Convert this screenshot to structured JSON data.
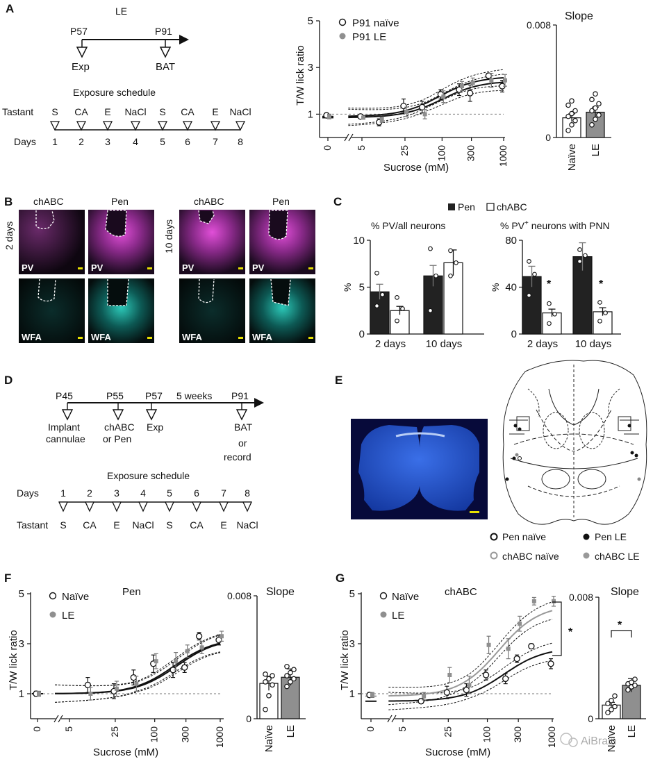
{
  "panels": {
    "A": {
      "letter": "A",
      "group": "LE",
      "timeline": {
        "start": "P57",
        "end": "P91",
        "start_event": "Exp",
        "end_event": "BAT"
      },
      "schedule_title": "Exposure schedule",
      "row_tastant": "Tastant",
      "row_days": "Days",
      "tastants": [
        "S",
        "CA",
        "E",
        "NaCl",
        "S",
        "CA",
        "E",
        "NaCl"
      ],
      "days": [
        "1",
        "2",
        "3",
        "4",
        "5",
        "6",
        "7",
        "8"
      ]
    },
    "B": {
      "letter": "B",
      "col_labels": [
        "chABC",
        "Pen",
        "chABC",
        "Pen"
      ],
      "row_labels": [
        "2 days",
        "10 days"
      ],
      "stain_labels": [
        "PV",
        "PV",
        "WFA",
        "WFA"
      ]
    },
    "C": {
      "letter": "C",
      "legend": [
        "Pen",
        "chABC"
      ],
      "titles": [
        "% PV/all neurons",
        "% PV",
        "+",
        " neurons with PNN"
      ],
      "star": "*"
    },
    "D": {
      "letter": "D",
      "timeline": [
        "P45",
        "P55",
        "P57",
        "5 weeks",
        "P91"
      ],
      "events": [
        "Implant",
        "cannulae",
        "chABC",
        "or Pen",
        "Exp",
        "BAT",
        "or",
        "record"
      ],
      "schedule_title": "Exposure schedule",
      "row_days": "Days",
      "row_tastant": "Tastant",
      "days": [
        "1",
        "2",
        "3",
        "4",
        "5",
        "6",
        "7",
        "8"
      ],
      "tastants": [
        "S",
        "CA",
        "E",
        "NaCl",
        "S",
        "CA",
        "E",
        "NaCl"
      ]
    },
    "E": {
      "letter": "E",
      "legend": [
        "Pen naïve",
        "Pen LE",
        "chABC naïve",
        "chABC LE"
      ]
    },
    "F": {
      "letter": "F",
      "title": "Pen"
    },
    "G": {
      "letter": "G",
      "title": "chABC",
      "star": "*"
    }
  },
  "watermark": "AiBrain",
  "chart_data": [
    {
      "id": "A-curve",
      "type": "scatter",
      "xlabel": "Sucrose (mM)",
      "ylabel": "T/W lick ratio",
      "xticks": [
        "0",
        "5",
        "25",
        "100",
        "300",
        "1000"
      ],
      "yticks": [
        "1",
        "3",
        "5"
      ],
      "ylim": [
        0,
        5
      ],
      "xscale": "log",
      "series": [
        {
          "name": "P91 naïve",
          "color": "#ffffff",
          "x": [
            0,
            5,
            10,
            25,
            50,
            100,
            200,
            300,
            600,
            1000
          ],
          "y": [
            0.95,
            0.9,
            0.65,
            1.35,
            1.3,
            1.85,
            2.05,
            1.9,
            2.65,
            2.2
          ],
          "err": [
            0.1,
            0.06,
            0.15,
            0.3,
            0.25,
            0.2,
            0.25,
            0.35,
            0.1,
            0.25
          ]
        },
        {
          "name": "P91 LE",
          "color": "#8f8f8f",
          "x": [
            0,
            5,
            10,
            25,
            50,
            100,
            200,
            300,
            600,
            1000
          ],
          "y": [
            0.9,
            0.85,
            0.75,
            1.1,
            1.0,
            1.75,
            2.2,
            2.35,
            2.45,
            2.45
          ],
          "err": [
            0.1,
            0.06,
            0.1,
            0.2,
            0.2,
            0.25,
            0.2,
            0.2,
            0.3,
            0.25
          ]
        }
      ]
    },
    {
      "id": "A-slope",
      "type": "bar",
      "title": "Slope",
      "categories": [
        "Naïve",
        "LE"
      ],
      "values": [
        0.0014,
        0.0018
      ],
      "ylim": [
        0,
        0.008
      ],
      "yticks": [
        "0",
        "0.008"
      ],
      "points": [
        [
          0.0005,
          0.0009,
          0.0012,
          0.0015,
          0.0017,
          0.0019,
          0.0023,
          0.0026
        ],
        [
          0.0009,
          0.0013,
          0.0016,
          0.0019,
          0.0021,
          0.0024,
          0.0027,
          0.0031
        ]
      ]
    },
    {
      "id": "C-left",
      "type": "bar",
      "title": "% PV/all neurons",
      "ylabel": "%",
      "categories": [
        "2 days",
        "10 days"
      ],
      "series": [
        {
          "name": "Pen",
          "values": [
            4.5,
            6.2
          ]
        },
        {
          "name": "chABC",
          "values": [
            2.5,
            7.6
          ]
        }
      ],
      "ylim": [
        0,
        10
      ],
      "yticks": [
        "0",
        "5",
        "10"
      ],
      "points": {
        "Pen": [
          [
            3.0,
            4.2,
            6.5
          ],
          [
            2.5,
            6.2,
            9.1
          ]
        ],
        "chABC": [
          [
            1.4,
            2.7,
            3.9
          ],
          [
            6.2,
            7.6,
            8.9
          ]
        ]
      }
    },
    {
      "id": "C-right",
      "type": "bar",
      "ylabel": "%",
      "categories": [
        "2 days",
        "10 days"
      ],
      "series": [
        {
          "name": "Pen",
          "values": [
            49,
            66
          ]
        },
        {
          "name": "chABC",
          "values": [
            18,
            19
          ]
        }
      ],
      "ylim": [
        0,
        80
      ],
      "yticks": [
        "0",
        "40",
        "80"
      ],
      "points": {
        "Pen": [
          [
            33,
            51,
            62
          ],
          [
            62,
            67,
            72
          ]
        ],
        "chABC": [
          [
            9,
            17,
            26
          ],
          [
            11,
            18,
            27
          ]
        ]
      }
    },
    {
      "id": "F-curve",
      "type": "scatter",
      "xlabel": "Sucrose (mM)",
      "ylabel": "T/W lick ratio",
      "xticks": [
        "0",
        "5",
        "25",
        "100",
        "300",
        "1000"
      ],
      "yticks": [
        "1",
        "3",
        "5"
      ],
      "ylim": [
        0,
        5
      ],
      "xscale": "log",
      "series": [
        {
          "name": "Naïve",
          "color": "#ffffff",
          "x": [
            0,
            10,
            25,
            50,
            100,
            200,
            300,
            500,
            1000
          ],
          "y": [
            1.0,
            1.35,
            1.1,
            1.65,
            2.2,
            1.95,
            2.05,
            3.3,
            3.15
          ],
          "err": [
            0.1,
            0.3,
            0.3,
            0.3,
            0.35,
            0.3,
            0.2,
            0.15,
            0.2
          ]
        },
        {
          "name": "LE",
          "color": "#8f8f8f",
          "x": [
            0,
            10,
            25,
            50,
            100,
            200,
            300,
            500,
            1000
          ],
          "y": [
            1.0,
            1.0,
            1.2,
            1.4,
            2.3,
            2.3,
            2.7,
            2.85,
            3.3
          ],
          "err": [
            0.1,
            0.25,
            0.3,
            0.3,
            0.3,
            0.35,
            0.25,
            0.25,
            0.2
          ]
        }
      ]
    },
    {
      "id": "F-slope",
      "type": "bar",
      "title": "Slope",
      "categories": [
        "Naïve",
        "LE"
      ],
      "values": [
        0.0023,
        0.0027
      ],
      "ylim": [
        0,
        0.008
      ],
      "yticks": [
        "0",
        "0.008"
      ],
      "points": [
        [
          0.0006,
          0.0015,
          0.0022,
          0.0024,
          0.0026,
          0.0028,
          0.0029
        ],
        [
          0.0021,
          0.0024,
          0.0026,
          0.0028,
          0.003,
          0.0032,
          0.0034
        ]
      ]
    },
    {
      "id": "G-curve",
      "type": "scatter",
      "xlabel": "Sucrose (mM)",
      "ylabel": "T/W lick ratio",
      "xticks": [
        "0",
        "5",
        "25",
        "100",
        "300",
        "1000"
      ],
      "yticks": [
        "1",
        "3",
        "5"
      ],
      "ylim": [
        0,
        5
      ],
      "xscale": "log",
      "series": [
        {
          "name": "Naïve",
          "color": "#ffffff",
          "x": [
            0,
            10,
            25,
            50,
            100,
            200,
            300,
            500,
            1000
          ],
          "y": [
            0.95,
            0.7,
            1.05,
            1.15,
            1.75,
            1.6,
            2.4,
            2.9,
            2.2
          ],
          "err": [
            0.1,
            0.1,
            0.25,
            0.25,
            0.2,
            0.2,
            0.15,
            0.1,
            0.2
          ]
        },
        {
          "name": "LE",
          "color": "#8f8f8f",
          "x": [
            0,
            10,
            25,
            50,
            100,
            200,
            300,
            500,
            1000
          ],
          "y": [
            0.95,
            0.9,
            1.75,
            1.35,
            2.95,
            2.8,
            3.8,
            4.7,
            4.7
          ],
          "err": [
            0.1,
            0.15,
            0.3,
            0.35,
            0.35,
            0.4,
            0.3,
            0.15,
            0.2
          ]
        }
      ]
    },
    {
      "id": "G-slope",
      "type": "bar",
      "title": "Slope",
      "categories": [
        "Naïve",
        "LE"
      ],
      "values": [
        0.0009,
        0.0022
      ],
      "ylim": [
        0,
        0.008
      ],
      "yticks": [
        "0",
        "0.008"
      ],
      "points": [
        [
          0.0004,
          0.0006,
          0.0008,
          0.001,
          0.0012,
          0.0015
        ],
        [
          0.0019,
          0.0021,
          0.0022,
          0.0023,
          0.0024,
          0.0026
        ]
      ]
    }
  ]
}
